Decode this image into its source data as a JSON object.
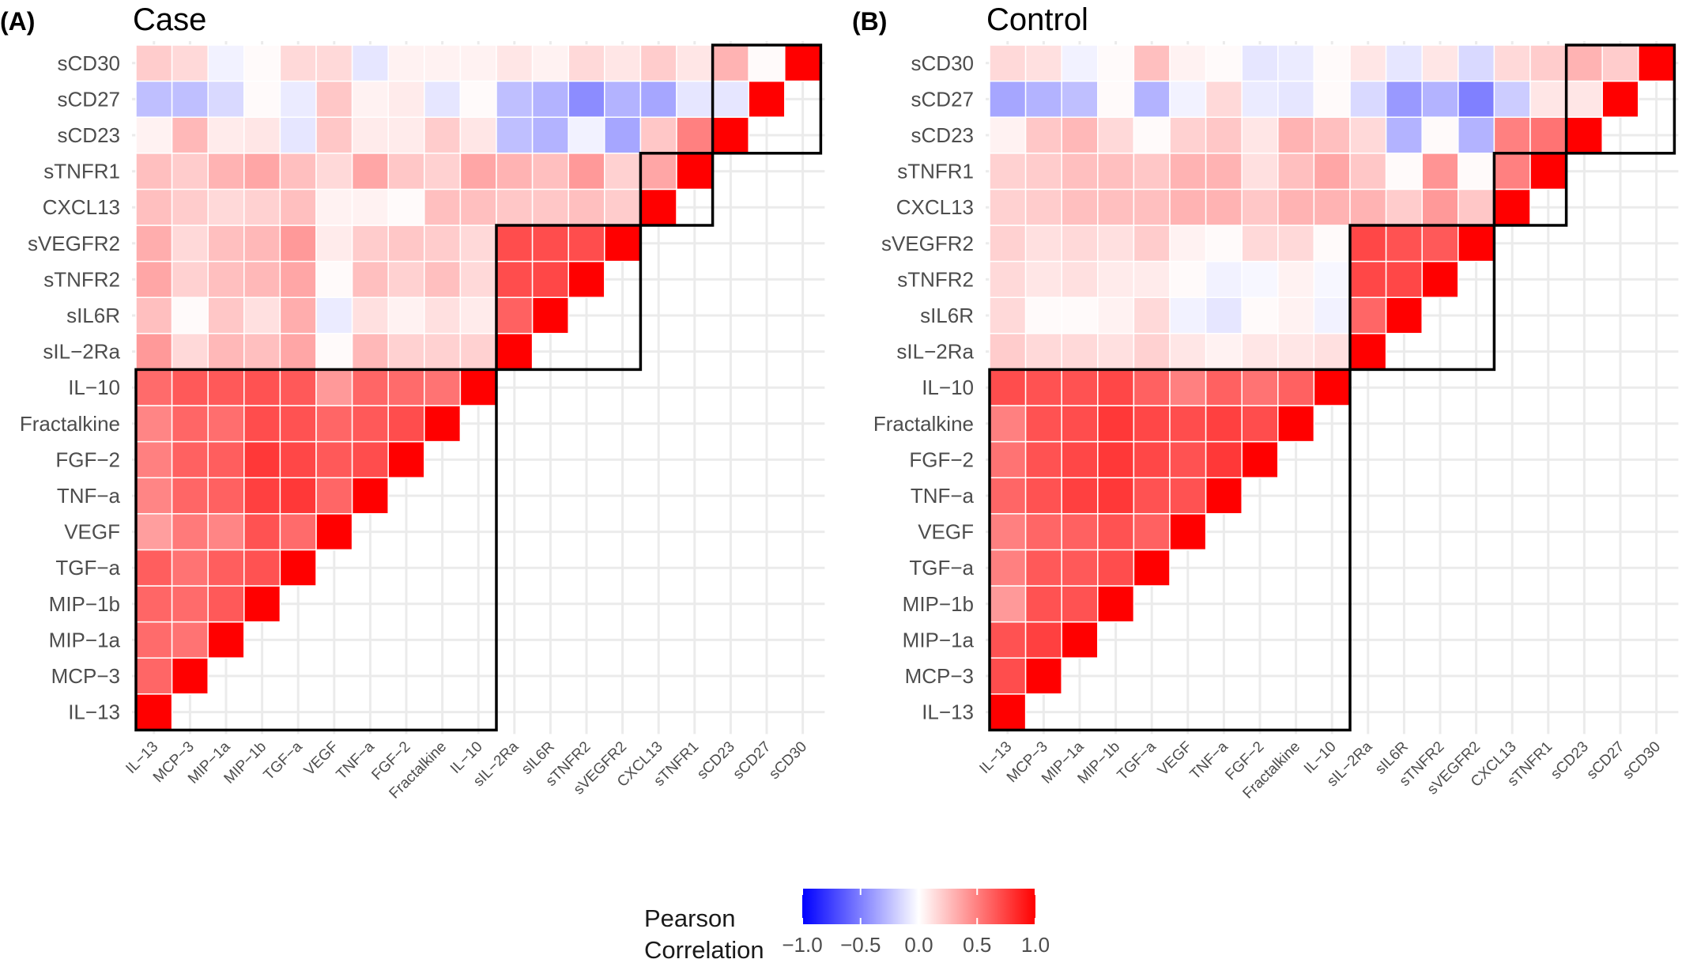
{
  "figure": {
    "panels": [
      {
        "tag": "(A)",
        "title": "Case"
      },
      {
        "tag": "(B)",
        "title": "Control"
      }
    ],
    "legend": {
      "title_line1": "Pearson",
      "title_line2": "Correlation",
      "ticks": [
        "−1.0",
        "−0.5",
        "0.0",
        "0.5",
        "1.0"
      ],
      "tick_values": [
        -1.0,
        -0.5,
        0.0,
        0.5,
        1.0
      ],
      "colors": {
        "low": "#0000ff",
        "mid": "#ffffff",
        "high": "#ff0000"
      }
    }
  },
  "chart_data": [
    {
      "type": "heatmap",
      "title": "Case",
      "variables": [
        "IL−13",
        "MCP−3",
        "MIP−1a",
        "MIP−1b",
        "TGF−a",
        "VEGF",
        "TNF−a",
        "FGF−2",
        "Fractalkine",
        "IL−10",
        "sIL−2Ra",
        "sIL6R",
        "sTNFR2",
        "sVEGFR2",
        "CXCL13",
        "sTNFR1",
        "sCD23",
        "sCD27",
        "sCD30"
      ],
      "value_range": [
        -1,
        1
      ],
      "groups": [
        [
          "IL−13",
          "MCP−3",
          "MIP−1a",
          "MIP−1b",
          "TGF−a",
          "VEGF",
          "TNF−a",
          "FGF−2",
          "Fractalkine",
          "IL−10"
        ],
        [
          "sIL−2Ra",
          "sIL6R",
          "sTNFR2",
          "sVEGFR2"
        ],
        [
          "CXCL13",
          "sTNFR1"
        ],
        [
          "sCD23",
          "sCD27",
          "sCD30"
        ]
      ],
      "values": [
        [
          1
        ],
        [
          0.6,
          1
        ],
        [
          0.58,
          0.55,
          1
        ],
        [
          0.6,
          0.58,
          0.65,
          1
        ],
        [
          0.63,
          0.55,
          0.63,
          0.68,
          1
        ],
        [
          0.38,
          0.52,
          0.48,
          0.68,
          0.58,
          1
        ],
        [
          0.48,
          0.6,
          0.62,
          0.75,
          0.78,
          0.6,
          1
        ],
        [
          0.5,
          0.62,
          0.63,
          0.78,
          0.72,
          0.65,
          0.7,
          1
        ],
        [
          0.48,
          0.6,
          0.57,
          0.7,
          0.68,
          0.6,
          0.65,
          0.7,
          1
        ],
        [
          0.58,
          0.65,
          0.65,
          0.68,
          0.65,
          0.4,
          0.6,
          0.58,
          0.55,
          1
        ],
        [
          0.4,
          0.15,
          0.28,
          0.25,
          0.35,
          0.02,
          0.28,
          0.18,
          0.18,
          0.18,
          1
        ],
        [
          0.25,
          0.02,
          0.22,
          0.12,
          0.32,
          -0.08,
          0.12,
          0.05,
          0.12,
          0.08,
          0.62,
          1
        ],
        [
          0.35,
          0.18,
          0.25,
          0.28,
          0.35,
          0.02,
          0.25,
          0.18,
          0.25,
          0.15,
          0.7,
          0.72,
          1
        ],
        [
          0.32,
          0.15,
          0.25,
          0.28,
          0.4,
          0.08,
          0.2,
          0.22,
          0.2,
          0.15,
          0.7,
          0.7,
          0.7,
          1
        ],
        [
          0.25,
          0.2,
          0.15,
          0.18,
          0.25,
          0.05,
          0.05,
          0.02,
          0.25,
          0.25,
          0.22,
          0.22,
          0.25,
          0.2,
          1
        ],
        [
          0.25,
          0.2,
          0.3,
          0.35,
          0.25,
          0.15,
          0.35,
          0.22,
          0.18,
          0.35,
          0.3,
          0.25,
          0.4,
          0.18,
          0.35,
          1
        ],
        [
          0.05,
          0.28,
          0.08,
          0.1,
          -0.1,
          0.22,
          0.08,
          0.08,
          0.2,
          0.1,
          -0.25,
          -0.3,
          -0.05,
          -0.35,
          0.22,
          0.5,
          1
        ],
        [
          -0.25,
          -0.25,
          -0.15,
          0.02,
          -0.08,
          0.22,
          0.05,
          0.08,
          -0.1,
          0.02,
          -0.25,
          -0.3,
          -0.45,
          -0.3,
          -0.35,
          -0.1,
          -0.1,
          1
        ],
        [
          0.2,
          0.15,
          -0.05,
          0.02,
          0.15,
          0.15,
          -0.1,
          0.05,
          0.05,
          0.05,
          0.1,
          0.05,
          0.15,
          0.1,
          0.2,
          0.1,
          0.3,
          0.02,
          1
        ]
      ],
      "boxes": [
        [
          0,
          9
        ],
        [
          10,
          13
        ],
        [
          14,
          15
        ],
        [
          16,
          18
        ]
      ]
    },
    {
      "type": "heatmap",
      "title": "Control",
      "variables": [
        "IL−13",
        "MCP−3",
        "MIP−1a",
        "MIP−1b",
        "TGF−a",
        "VEGF",
        "TNF−a",
        "FGF−2",
        "Fractalkine",
        "IL−10",
        "sIL−2Ra",
        "sIL6R",
        "sTNFR2",
        "sVEGFR2",
        "CXCL13",
        "sTNFR1",
        "sCD23",
        "sCD27",
        "sCD30"
      ],
      "value_range": [
        -1,
        1
      ],
      "groups": [
        [
          "IL−13",
          "MCP−3",
          "MIP−1a",
          "MIP−1b",
          "TGF−a",
          "VEGF",
          "TNF−a",
          "FGF−2",
          "Fractalkine",
          "IL−10"
        ],
        [
          "sIL−2Ra",
          "sIL6R",
          "sTNFR2",
          "sVEGFR2"
        ],
        [
          "CXCL13",
          "sTNFR1"
        ],
        [
          "sCD23",
          "sCD27",
          "sCD30"
        ]
      ],
      "values": [
        [
          1
        ],
        [
          0.7,
          1
        ],
        [
          0.68,
          0.75,
          1
        ],
        [
          0.4,
          0.68,
          0.68,
          1
        ],
        [
          0.5,
          0.65,
          0.65,
          0.7,
          1
        ],
        [
          0.5,
          0.6,
          0.62,
          0.68,
          0.62,
          1
        ],
        [
          0.6,
          0.68,
          0.75,
          0.78,
          0.68,
          0.68,
          1
        ],
        [
          0.55,
          0.68,
          0.72,
          0.78,
          0.72,
          0.68,
          0.78,
          1
        ],
        [
          0.5,
          0.68,
          0.7,
          0.78,
          0.72,
          0.7,
          0.75,
          0.7,
          1
        ],
        [
          0.7,
          0.68,
          0.68,
          0.72,
          0.62,
          0.5,
          0.62,
          0.55,
          0.62,
          1
        ],
        [
          0.2,
          0.15,
          0.15,
          0.12,
          0.18,
          0.1,
          0.05,
          0.1,
          0.1,
          0.12,
          1
        ],
        [
          0.15,
          0.02,
          0.02,
          0.05,
          0.15,
          -0.05,
          -0.1,
          0.02,
          0.05,
          -0.05,
          0.6,
          1
        ],
        [
          0.15,
          0.1,
          0.12,
          0.08,
          0.08,
          0.02,
          -0.05,
          -0.03,
          0.05,
          -0.03,
          0.72,
          0.72,
          1
        ],
        [
          0.18,
          0.12,
          0.15,
          0.12,
          0.2,
          0.05,
          0.02,
          0.15,
          0.15,
          0.02,
          0.72,
          0.68,
          0.65,
          1
        ],
        [
          0.18,
          0.2,
          0.25,
          0.25,
          0.25,
          0.3,
          0.3,
          0.22,
          0.3,
          0.3,
          0.3,
          0.2,
          0.4,
          0.22,
          1
        ],
        [
          0.18,
          0.2,
          0.25,
          0.25,
          0.22,
          0.3,
          0.3,
          0.12,
          0.25,
          0.35,
          0.22,
          0.02,
          0.42,
          0.02,
          0.5,
          1
        ],
        [
          0.05,
          0.22,
          0.28,
          0.15,
          0.02,
          0.18,
          0.22,
          0.1,
          0.3,
          0.25,
          0.15,
          -0.3,
          0.02,
          -0.3,
          0.5,
          0.55,
          1
        ],
        [
          -0.35,
          -0.3,
          -0.25,
          0.02,
          -0.3,
          -0.05,
          0.15,
          -0.08,
          -0.1,
          0.02,
          -0.15,
          -0.4,
          -0.3,
          -0.5,
          -0.2,
          0.1,
          0.1,
          1
        ],
        [
          0.15,
          0.12,
          -0.05,
          0.02,
          0.25,
          0.05,
          0.02,
          -0.1,
          -0.08,
          0.02,
          0.1,
          -0.1,
          0.1,
          -0.15,
          0.15,
          0.2,
          0.3,
          0.2,
          1
        ]
      ],
      "boxes": [
        [
          0,
          9
        ],
        [
          10,
          13
        ],
        [
          14,
          15
        ],
        [
          16,
          18
        ]
      ]
    }
  ]
}
